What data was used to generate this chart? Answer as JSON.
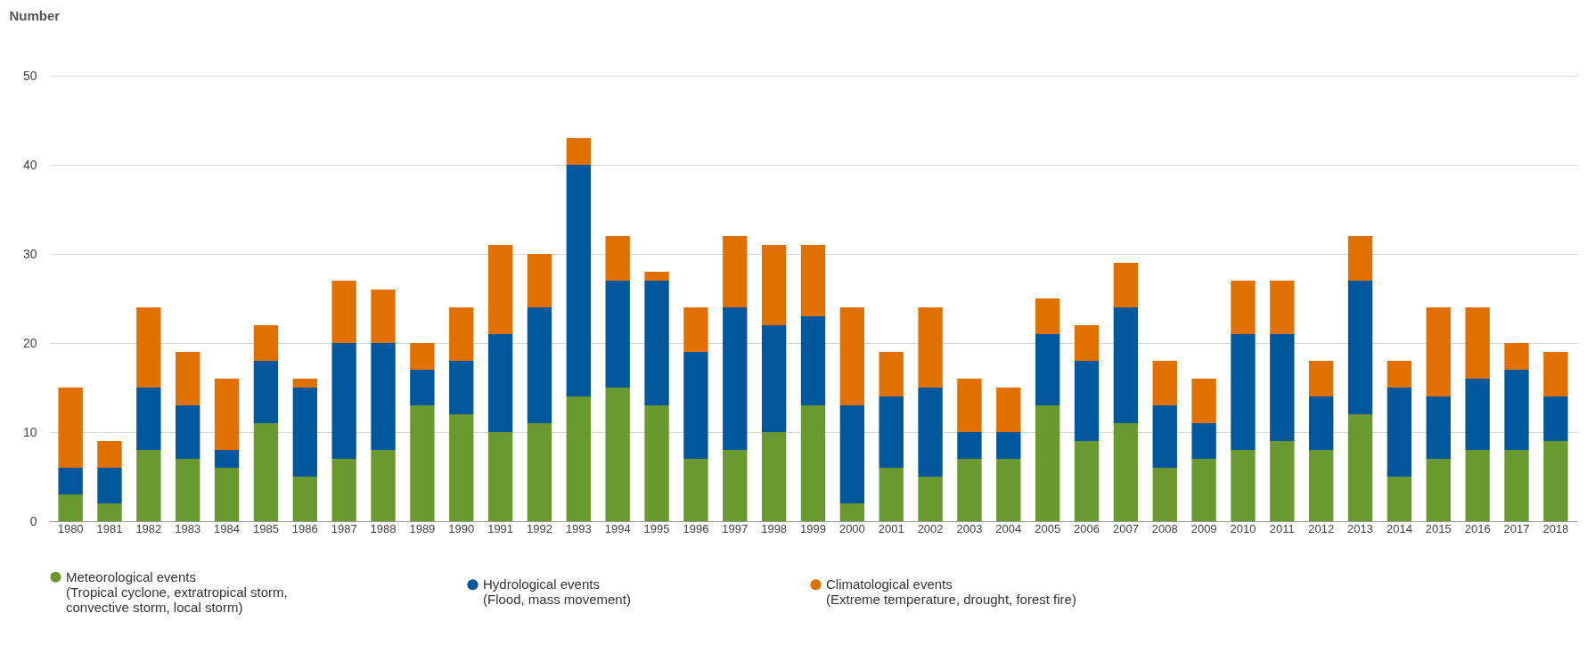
{
  "chart_data": {
    "type": "bar",
    "ylabel": "Number",
    "stacked": true,
    "grid": "y",
    "legend": "bottom",
    "ylim": [
      0,
      50
    ],
    "yticks": [
      0,
      10,
      20,
      30,
      40,
      50
    ],
    "categories": [
      "1980",
      "1981",
      "1982",
      "1983",
      "1984",
      "1985",
      "1986",
      "1987",
      "1988",
      "1989",
      "1990",
      "1991",
      "1992",
      "1993",
      "1994",
      "1995",
      "1996",
      "1997",
      "1998",
      "1999",
      "2000",
      "2001",
      "2002",
      "2003",
      "2004",
      "2005",
      "2006",
      "2007",
      "2008",
      "2009",
      "2010",
      "2011",
      "2012",
      "2013",
      "2014",
      "2015",
      "2016",
      "2017",
      "2018"
    ],
    "series": [
      {
        "name": "Meteorological events\n(Tropical cyclone, extratropical storm,\nconvective storm, local storm)",
        "color": "#6a9a2f",
        "values": [
          3,
          2,
          8,
          7,
          6,
          11,
          5,
          7,
          8,
          13,
          12,
          10,
          11,
          14,
          15,
          13,
          7,
          8,
          10,
          13,
          2,
          6,
          5,
          7,
          7,
          13,
          9,
          11,
          6,
          7,
          8,
          9,
          8,
          12,
          5,
          7,
          8,
          8,
          9
        ]
      },
      {
        "name": "Hydrological events\n(Flood, mass movement)",
        "color": "#00579c",
        "values": [
          3,
          4,
          7,
          6,
          2,
          7,
          10,
          13,
          12,
          4,
          6,
          11,
          13,
          26,
          12,
          14,
          12,
          16,
          12,
          10,
          11,
          8,
          10,
          3,
          3,
          8,
          9,
          13,
          7,
          4,
          13,
          12,
          6,
          15,
          10,
          7,
          8,
          9,
          5
        ]
      },
      {
        "name": "Climatological events\n(Extreme temperature, drought, forest fire)",
        "color": "#e07000",
        "values": [
          9,
          3,
          9,
          6,
          8,
          4,
          1,
          7,
          6,
          3,
          6,
          10,
          6,
          3,
          5,
          1,
          5,
          8,
          9,
          8,
          11,
          5,
          9,
          6,
          5,
          4,
          4,
          5,
          5,
          5,
          6,
          6,
          4,
          5,
          3,
          10,
          8,
          3,
          5
        ]
      }
    ]
  }
}
